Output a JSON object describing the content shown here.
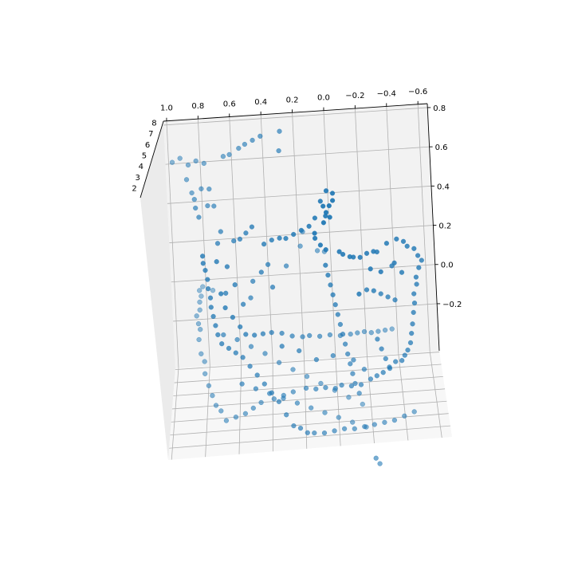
{
  "chart_data": {
    "type": "scatter",
    "projection": "3d",
    "title": "",
    "xlabel": "",
    "ylabel": "",
    "zlabel": "",
    "grid": true,
    "legend": "none",
    "marker_color": "#1f77b4",
    "x_ticks": [
      "1.0",
      "0.8",
      "0.6",
      "0.4",
      "0.2",
      "0.0",
      "−0.2",
      "−0.4",
      "−0.6"
    ],
    "y_ticks": [
      "8",
      "7",
      "6",
      "5",
      "4",
      "3",
      "2"
    ],
    "z_ticks": [
      "0.8",
      "0.6",
      "0.4",
      "0.2",
      "0.0",
      "−0.2"
    ],
    "xlim": [
      1.0,
      -0.6
    ],
    "zlim": [
      -0.3,
      0.85
    ],
    "points": [
      [
        0.98,
        8.2,
        0.78
      ],
      [
        0.93,
        8.0,
        0.79
      ],
      [
        0.88,
        7.8,
        0.75
      ],
      [
        0.83,
        7.6,
        0.76
      ],
      [
        0.78,
        7.4,
        0.74
      ],
      [
        0.66,
        7.2,
        0.76
      ],
      [
        0.62,
        7.0,
        0.76
      ],
      [
        0.56,
        6.8,
        0.78
      ],
      [
        0.52,
        6.6,
        0.79
      ],
      [
        0.47,
        6.4,
        0.8
      ],
      [
        0.42,
        6.2,
        0.81
      ],
      [
        0.3,
        6.0,
        0.82
      ],
      [
        0.31,
        6.0,
        0.73
      ],
      [
        0.89,
        7.4,
        0.67
      ],
      [
        0.86,
        7.2,
        0.6
      ],
      [
        0.8,
        7.0,
        0.61
      ],
      [
        0.75,
        6.8,
        0.6
      ],
      [
        0.84,
        6.6,
        0.55
      ],
      [
        0.76,
        6.4,
        0.51
      ],
      [
        0.72,
        6.2,
        0.5
      ],
      [
        0.83,
        6.0,
        0.49
      ],
      [
        0.81,
        5.8,
        0.44
      ],
      [
        0.68,
        5.6,
        0.36
      ],
      [
        0.7,
        5.4,
        0.3
      ],
      [
        0.6,
        5.2,
        0.3
      ],
      [
        0.56,
        5.0,
        0.3
      ],
      [
        0.52,
        4.8,
        0.32
      ],
      [
        0.48,
        4.6,
        0.34
      ],
      [
        0.41,
        4.4,
        0.25
      ],
      [
        0.36,
        4.2,
        0.26
      ],
      [
        0.31,
        4.0,
        0.26
      ],
      [
        0.27,
        3.8,
        0.25
      ],
      [
        0.22,
        3.6,
        0.26
      ],
      [
        0.17,
        3.4,
        0.27
      ],
      [
        0.12,
        3.2,
        0.28
      ],
      [
        0.08,
        3.0,
        0.31
      ],
      [
        0.04,
        2.8,
        0.38
      ],
      [
        0.0,
        2.6,
        0.42
      ],
      [
        -0.04,
        2.4,
        0.4
      ],
      [
        -0.04,
        2.2,
        0.36
      ],
      [
        -0.02,
        2.0,
        0.33
      ],
      [
        0.0,
        2.0,
        0.3
      ],
      [
        -0.02,
        2.1,
        0.28
      ],
      [
        0.02,
        2.2,
        0.26
      ],
      [
        0.08,
        2.4,
        0.22
      ],
      [
        0.08,
        2.5,
        0.2
      ],
      [
        0.05,
        2.6,
        0.17
      ],
      [
        0.02,
        2.7,
        0.15
      ],
      [
        -0.06,
        2.8,
        0.14
      ],
      [
        -0.08,
        2.9,
        0.13
      ],
      [
        -0.12,
        3.0,
        0.12
      ],
      [
        -0.14,
        3.1,
        0.12
      ],
      [
        -0.18,
        3.2,
        0.12
      ],
      [
        -0.22,
        3.3,
        0.14
      ],
      [
        -0.26,
        3.4,
        0.15
      ],
      [
        -0.28,
        3.5,
        0.15
      ],
      [
        -0.34,
        3.6,
        0.19
      ],
      [
        -0.4,
        3.7,
        0.21
      ],
      [
        -0.44,
        3.8,
        0.2
      ],
      [
        -0.46,
        3.9,
        0.18
      ],
      [
        -0.5,
        4.0,
        0.17
      ],
      [
        -0.52,
        4.1,
        0.14
      ],
      [
        -0.54,
        4.2,
        0.12
      ],
      [
        -0.52,
        4.3,
        0.09
      ],
      [
        -0.5,
        4.4,
        0.05
      ],
      [
        -0.5,
        4.5,
        0.02
      ],
      [
        -0.48,
        4.6,
        -0.02
      ],
      [
        -0.48,
        4.7,
        -0.06
      ],
      [
        -0.47,
        4.8,
        -0.1
      ],
      [
        -0.46,
        4.9,
        -0.15
      ],
      [
        -0.45,
        5.0,
        -0.19
      ],
      [
        -0.44,
        5.1,
        -0.23
      ],
      [
        -0.42,
        5.2,
        -0.26
      ],
      [
        -0.4,
        5.3,
        -0.28
      ],
      [
        -0.38,
        5.4,
        -0.3
      ],
      [
        -0.34,
        5.5,
        -0.3
      ],
      [
        -0.3,
        5.6,
        -0.32
      ],
      [
        -0.26,
        5.7,
        -0.34
      ],
      [
        -0.22,
        5.8,
        -0.35
      ],
      [
        -0.18,
        5.9,
        -0.36
      ],
      [
        -0.12,
        6.0,
        -0.38
      ],
      [
        -0.06,
        6.1,
        -0.38
      ],
      [
        0.0,
        6.2,
        -0.37
      ],
      [
        0.04,
        6.3,
        -0.38
      ],
      [
        0.1,
        6.4,
        -0.37
      ],
      [
        0.16,
        6.5,
        -0.37
      ],
      [
        0.22,
        6.6,
        -0.36
      ],
      [
        0.3,
        6.7,
        -0.37
      ],
      [
        0.36,
        6.8,
        -0.38
      ],
      [
        0.42,
        6.9,
        -0.39
      ],
      [
        0.5,
        7.0,
        -0.4
      ],
      [
        0.55,
        7.1,
        -0.42
      ],
      [
        0.6,
        7.2,
        -0.44
      ],
      [
        0.66,
        7.3,
        -0.45
      ],
      [
        0.72,
        7.4,
        -0.46
      ],
      [
        0.75,
        7.5,
        -0.41
      ],
      [
        0.78,
        7.6,
        -0.38
      ],
      [
        0.8,
        7.7,
        -0.33
      ],
      [
        0.82,
        7.8,
        -0.28
      ],
      [
        0.84,
        7.9,
        -0.22
      ],
      [
        0.84,
        8.0,
        -0.16
      ],
      [
        0.86,
        8.1,
        -0.12
      ],
      [
        0.87,
        8.2,
        -0.05
      ],
      [
        0.86,
        8.3,
        0.0
      ],
      [
        0.87,
        8.4,
        0.03
      ],
      [
        0.88,
        8.5,
        0.07
      ],
      [
        0.86,
        8.6,
        0.1
      ],
      [
        0.86,
        8.7,
        0.14
      ],
      [
        0.85,
        8.8,
        0.17
      ],
      [
        0.86,
        8.9,
        0.2
      ],
      [
        0.84,
        9.0,
        0.22
      ],
      [
        0.78,
        9.1,
        0.2
      ],
      [
        0.68,
        4.0,
        0.02
      ],
      [
        0.66,
        4.2,
        -0.04
      ],
      [
        0.62,
        4.4,
        -0.08
      ],
      [
        0.58,
        4.6,
        -0.12
      ],
      [
        0.55,
        4.8,
        -0.15
      ],
      [
        0.5,
        5.0,
        -0.15
      ],
      [
        0.45,
        5.2,
        -0.14
      ],
      [
        0.4,
        5.4,
        -0.13
      ],
      [
        0.34,
        5.6,
        -0.13
      ],
      [
        0.28,
        5.8,
        -0.14
      ],
      [
        0.22,
        6.0,
        -0.14
      ],
      [
        0.18,
        6.2,
        -0.13
      ],
      [
        0.12,
        6.4,
        -0.13
      ],
      [
        0.06,
        6.6,
        -0.12
      ],
      [
        0.0,
        6.8,
        -0.12
      ],
      [
        -0.06,
        7.0,
        -0.11
      ],
      [
        -0.1,
        7.2,
        -0.1
      ],
      [
        -0.14,
        7.4,
        -0.09
      ],
      [
        -0.18,
        7.6,
        -0.09
      ],
      [
        -0.22,
        7.8,
        -0.08
      ],
      [
        -0.26,
        8.0,
        -0.07
      ],
      [
        -0.3,
        8.2,
        -0.06
      ],
      [
        0.78,
        4.0,
        0.2
      ],
      [
        0.78,
        4.1,
        0.17
      ],
      [
        0.77,
        4.2,
        0.14
      ],
      [
        0.76,
        4.3,
        0.1
      ],
      [
        0.76,
        4.4,
        0.06
      ],
      [
        0.75,
        4.5,
        0.02
      ],
      [
        0.75,
        4.6,
        -0.02
      ],
      [
        0.74,
        4.7,
        -0.06
      ],
      [
        0.73,
        4.8,
        -0.1
      ],
      [
        0.72,
        4.9,
        -0.14
      ],
      [
        0.7,
        5.0,
        -0.18
      ],
      [
        0.66,
        5.1,
        -0.2
      ],
      [
        0.62,
        5.2,
        -0.22
      ],
      [
        0.58,
        5.3,
        -0.24
      ],
      [
        0.54,
        5.4,
        -0.28
      ],
      [
        0.5,
        5.5,
        -0.32
      ],
      [
        0.46,
        5.6,
        -0.36
      ],
      [
        0.42,
        5.7,
        -0.4
      ],
      [
        0.38,
        5.8,
        -0.44
      ],
      [
        0.34,
        5.9,
        -0.5
      ],
      [
        0.3,
        6.0,
        -0.55
      ],
      [
        0.26,
        6.1,
        -0.56
      ],
      [
        0.22,
        6.2,
        -0.58
      ],
      [
        0.18,
        6.3,
        -0.58
      ],
      [
        0.12,
        6.4,
        -0.58
      ],
      [
        0.06,
        6.5,
        -0.57
      ],
      [
        0.0,
        6.6,
        -0.56
      ],
      [
        -0.06,
        6.7,
        -0.56
      ],
      [
        -0.12,
        6.8,
        -0.55
      ],
      [
        -0.18,
        6.9,
        -0.54
      ],
      [
        -0.24,
        7.0,
        -0.53
      ],
      [
        -0.3,
        7.1,
        -0.52
      ],
      [
        -0.36,
        7.2,
        -0.5
      ],
      [
        -0.42,
        7.3,
        -0.48
      ],
      [
        0.7,
        6.2,
        -0.1
      ],
      [
        0.62,
        6.4,
        -0.12
      ],
      [
        0.54,
        6.6,
        -0.15
      ],
      [
        0.46,
        6.8,
        -0.18
      ],
      [
        0.38,
        7.0,
        -0.22
      ],
      [
        0.3,
        7.2,
        -0.25
      ],
      [
        0.22,
        7.4,
        -0.28
      ],
      [
        0.14,
        7.6,
        -0.31
      ],
      [
        0.06,
        7.8,
        -0.34
      ],
      [
        -0.02,
        8.0,
        -0.37
      ],
      [
        -0.1,
        8.2,
        -0.4
      ],
      [
        0.6,
        6.0,
        -0.34
      ],
      [
        0.52,
        6.2,
        -0.36
      ],
      [
        0.44,
        6.4,
        -0.38
      ],
      [
        0.36,
        6.6,
        -0.4
      ],
      [
        0.28,
        6.8,
        -0.42
      ],
      [
        0.2,
        7.0,
        -0.44
      ],
      [
        0.12,
        7.2,
        -0.46
      ],
      [
        0.04,
        7.4,
        -0.48
      ],
      [
        -0.04,
        7.6,
        -0.5
      ],
      [
        -0.12,
        7.8,
        -0.52
      ],
      [
        0.04,
        4.0,
        0.12
      ],
      [
        0.03,
        4.2,
        0.08
      ],
      [
        0.02,
        4.4,
        0.04
      ],
      [
        0.01,
        4.6,
        0.0
      ],
      [
        0.0,
        4.8,
        -0.04
      ],
      [
        -0.01,
        5.0,
        -0.08
      ],
      [
        -0.02,
        5.2,
        -0.12
      ],
      [
        -0.03,
        5.4,
        -0.16
      ],
      [
        -0.04,
        5.6,
        -0.2
      ],
      [
        -0.05,
        5.8,
        -0.24
      ],
      [
        -0.06,
        6.0,
        -0.28
      ],
      [
        -0.07,
        6.2,
        -0.32
      ],
      [
        -0.08,
        6.4,
        -0.36
      ],
      [
        -0.1,
        6.6,
        -0.4
      ],
      [
        -0.2,
        4.2,
        0.0
      ],
      [
        -0.24,
        4.4,
        0.0
      ],
      [
        -0.28,
        4.6,
        -0.01
      ],
      [
        -0.32,
        4.8,
        -0.02
      ],
      [
        -0.36,
        5.0,
        -0.03
      ],
      [
        -0.24,
        5.2,
        -0.2
      ],
      [
        -0.26,
        5.4,
        -0.24
      ],
      [
        -0.28,
        5.6,
        -0.28
      ],
      [
        -0.3,
        5.8,
        -0.32
      ],
      [
        0.2,
        7.0,
        0.38
      ],
      [
        0.22,
        7.2,
        0.32
      ],
      [
        0.12,
        7.4,
        0.3
      ],
      [
        0.08,
        7.6,
        0.3
      ],
      [
        0.44,
        5.0,
        0.14
      ],
      [
        0.4,
        5.2,
        0.18
      ],
      [
        0.38,
        5.4,
        0.08
      ],
      [
        0.5,
        5.6,
        0.12
      ],
      [
        0.52,
        5.8,
        0.05
      ],
      [
        0.3,
        6.2,
        0.2
      ],
      [
        -0.18,
        6.8,
        -0.7
      ],
      [
        -0.2,
        7.0,
        -0.72
      ],
      [
        0.02,
        2.3,
        0.34
      ],
      [
        0.01,
        2.5,
        0.3
      ],
      [
        -0.24,
        3.1,
        0.06
      ],
      [
        -0.3,
        3.3,
        0.05
      ],
      [
        -0.16,
        3.5,
        -0.04
      ],
      [
        -0.38,
        3.7,
        0.1
      ],
      [
        -0.42,
        3.9,
        0.06
      ],
      [
        -0.36,
        4.1,
        0.1
      ],
      [
        0.7,
        4.3,
        0.18
      ],
      [
        0.64,
        4.5,
        0.16
      ],
      [
        0.6,
        4.7,
        0.08
      ],
      [
        0.66,
        4.9,
        0.05
      ],
      [
        0.56,
        5.1,
        0.0
      ],
      [
        0.34,
        5.3,
        -0.2
      ],
      [
        0.24,
        5.5,
        -0.22
      ],
      [
        0.14,
        5.7,
        -0.26
      ],
      [
        0.04,
        5.9,
        -0.24
      ],
      [
        -0.08,
        6.1,
        -0.26
      ],
      [
        -0.14,
        6.3,
        -0.3
      ]
    ]
  }
}
